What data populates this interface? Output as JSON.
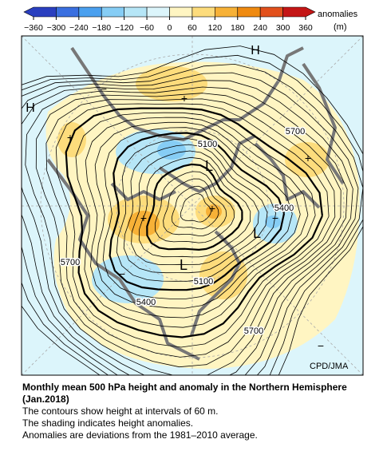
{
  "colorbar": {
    "unit_title": "anomalies",
    "unit": "(m)",
    "ticks": [
      {
        "value": -360,
        "label": "−360"
      },
      {
        "value": -300,
        "label": "−300"
      },
      {
        "value": -240,
        "label": "−240"
      },
      {
        "value": -180,
        "label": "−180"
      },
      {
        "value": -120,
        "label": "−120"
      },
      {
        "value": -60,
        "label": "−60"
      },
      0,
      60,
      120,
      180,
      240,
      300,
      360
    ],
    "colors": [
      "#2a3fbf",
      "#3a6fe0",
      "#4aa0ef",
      "#86cdf5",
      "#b6e6f7",
      "#dcf5fb",
      "#fff5c2",
      "#fddc7c",
      "#f7b137",
      "#ef8a10",
      "#e2501c",
      "#c41616"
    ]
  },
  "map": {
    "labels": [
      "H",
      "H",
      "L",
      "L",
      "L",
      "+",
      "+",
      "+",
      "+",
      "+",
      "+",
      "−",
      "−",
      "−",
      "−",
      "5100",
      "5100",
      "5400",
      "5400",
      "5700",
      "5700",
      "5700"
    ],
    "credit": "CPD/JMA"
  },
  "caption": {
    "title": "Monthly mean 500 hPa height and anomaly in the Northern Hemisphere (Jan.2018)",
    "lines": [
      "The contours show height at intervals of 60 m.",
      "The shading indicates height anomalies.",
      "Anomalies are deviations from the 1981–2010 average."
    ]
  }
}
